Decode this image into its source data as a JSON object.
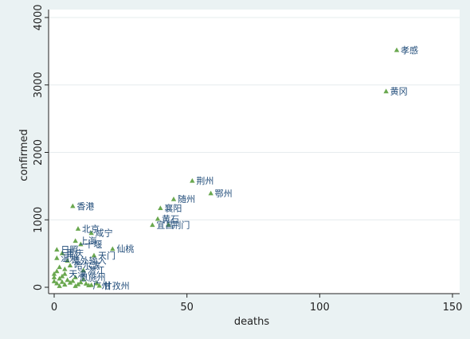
{
  "chart_data": {
    "type": "scatter",
    "title": "",
    "xlabel": "deaths",
    "ylabel": "confirmed",
    "xlim": [
      0,
      150
    ],
    "ylim": [
      0,
      4000
    ],
    "xticks": [
      0,
      50,
      100,
      150
    ],
    "yticks": [
      0,
      1000,
      2000,
      3000,
      4000
    ],
    "grid": true,
    "colors": {
      "background": "#eaf2f3",
      "plot_area": "#ffffff",
      "marker": "#6aa84f",
      "label": "#1e4a78"
    },
    "points": [
      {
        "x": 129,
        "y": 3518,
        "label": "孝感"
      },
      {
        "x": 125,
        "y": 2907,
        "label": "黄冈"
      },
      {
        "x": 52,
        "y": 1580,
        "label": "荆州"
      },
      {
        "x": 59,
        "y": 1394,
        "label": "鄂州"
      },
      {
        "x": 45,
        "y": 1307,
        "label": "随州"
      },
      {
        "x": 40,
        "y": 1175,
        "label": "襄阳"
      },
      {
        "x": 39,
        "y": 1015,
        "label": "黄石"
      },
      {
        "x": 37,
        "y": 925,
        "label": "宜昌"
      },
      {
        "x": 43,
        "y": 928,
        "label": "荆门"
      },
      {
        "x": 7,
        "y": 1205,
        "label": "香港"
      },
      {
        "x": 9,
        "y": 870,
        "label": "北京"
      },
      {
        "x": 14,
        "y": 806,
        "label": "咸宁"
      },
      {
        "x": 8,
        "y": 689,
        "label": "上海"
      },
      {
        "x": 10,
        "y": 640,
        "label": "十堰"
      },
      {
        "x": 22,
        "y": 570,
        "label": "仙桃"
      },
      {
        "x": 15,
        "y": 474,
        "label": "天门"
      },
      {
        "x": 1,
        "y": 560,
        "label": "日照"
      },
      {
        "x": 3,
        "y": 505,
        "label": "重庆"
      },
      {
        "x": 1,
        "y": 435,
        "label": "温州"
      },
      {
        "x": 5,
        "y": 396,
        "label": "境外输入"
      },
      {
        "x": 6,
        "y": 325,
        "label": "哈尔滨"
      },
      {
        "x": 11,
        "y": 255,
        "label": "潜江"
      },
      {
        "x": 4,
        "y": 200,
        "label": "天津"
      },
      {
        "x": 8,
        "y": 150,
        "label": "恩施州"
      },
      {
        "x": 17,
        "y": 25,
        "label": "甘孜州"
      },
      {
        "x": 13,
        "y": 30,
        "label": "广州"
      },
      {
        "x": 2,
        "y": 130,
        "label": ""
      },
      {
        "x": 3,
        "y": 80,
        "label": ""
      },
      {
        "x": 1,
        "y": 60,
        "label": ""
      },
      {
        "x": 5,
        "y": 110,
        "label": ""
      },
      {
        "x": 4,
        "y": 40,
        "label": ""
      },
      {
        "x": 6,
        "y": 70,
        "label": ""
      },
      {
        "x": 2,
        "y": 20,
        "label": ""
      },
      {
        "x": 7,
        "y": 95,
        "label": ""
      },
      {
        "x": 3,
        "y": 165,
        "label": ""
      },
      {
        "x": 9,
        "y": 45,
        "label": ""
      },
      {
        "x": 1,
        "y": 240,
        "label": ""
      },
      {
        "x": 2,
        "y": 300,
        "label": ""
      },
      {
        "x": 10,
        "y": 75,
        "label": ""
      },
      {
        "x": 12,
        "y": 55,
        "label": ""
      },
      {
        "x": 0,
        "y": 150,
        "label": ""
      },
      {
        "x": 0,
        "y": 90,
        "label": ""
      },
      {
        "x": 0,
        "y": 200,
        "label": ""
      },
      {
        "x": 14,
        "y": 35,
        "label": ""
      },
      {
        "x": 8,
        "y": 20,
        "label": ""
      },
      {
        "x": 4,
        "y": 270,
        "label": ""
      },
      {
        "x": 16,
        "y": 60,
        "label": ""
      },
      {
        "x": 11,
        "y": 120,
        "label": ""
      }
    ]
  }
}
